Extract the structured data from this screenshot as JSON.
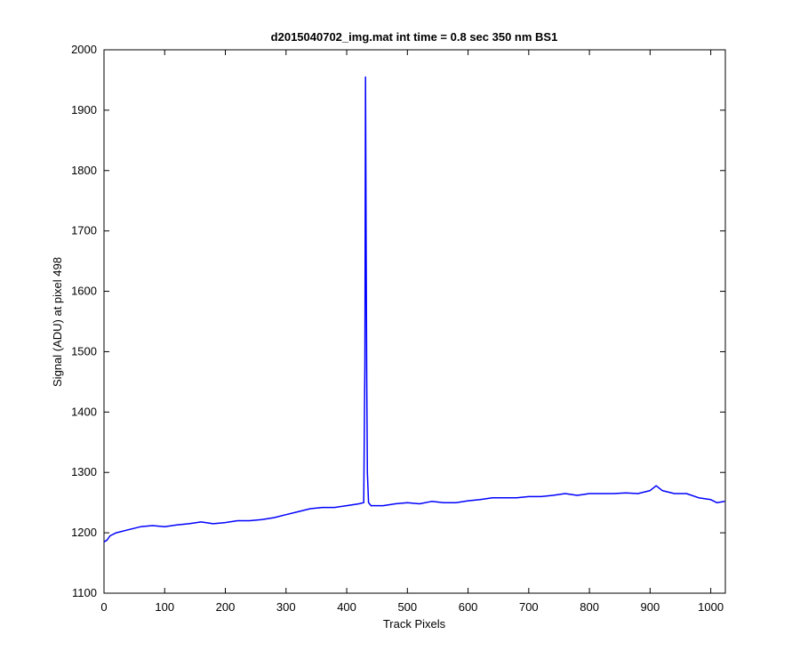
{
  "chart_data": {
    "type": "line",
    "title": "d2015040702_img.mat int time = 0.8 sec  350 nm BS1",
    "xlabel": "Track Pixels",
    "ylabel": "Signal (ADU) at pixel 498",
    "xlim": [
      0,
      1024
    ],
    "ylim": [
      1100,
      2000
    ],
    "xticks": [
      0,
      100,
      200,
      300,
      400,
      500,
      600,
      700,
      800,
      900,
      1000
    ],
    "yticks": [
      1100,
      1200,
      1300,
      1400,
      1500,
      1600,
      1700,
      1800,
      1900,
      2000
    ],
    "grid": false,
    "legend": "none",
    "line_color": "#0000ff",
    "series": [
      {
        "x": [
          0,
          5,
          10,
          20,
          40,
          60,
          80,
          100,
          120,
          140,
          160,
          180,
          200,
          220,
          240,
          260,
          280,
          300,
          320,
          340,
          360,
          380,
          400,
          420,
          428,
          430,
          431,
          432,
          433,
          434,
          436,
          440,
          460,
          480,
          500,
          520,
          540,
          560,
          580,
          600,
          620,
          640,
          660,
          680,
          700,
          720,
          740,
          760,
          780,
          800,
          820,
          840,
          860,
          880,
          900,
          910,
          920,
          940,
          960,
          980,
          1000,
          1010,
          1023
        ],
        "y": [
          1185,
          1188,
          1195,
          1200,
          1205,
          1210,
          1212,
          1210,
          1213,
          1215,
          1218,
          1215,
          1217,
          1220,
          1220,
          1222,
          1225,
          1230,
          1235,
          1240,
          1242,
          1242,
          1245,
          1248,
          1250,
          1480,
          1955,
          1680,
          1450,
          1300,
          1250,
          1245,
          1245,
          1248,
          1250,
          1248,
          1252,
          1250,
          1250,
          1253,
          1255,
          1258,
          1258,
          1258,
          1260,
          1260,
          1262,
          1265,
          1262,
          1265,
          1265,
          1265,
          1266,
          1265,
          1270,
          1278,
          1270,
          1265,
          1265,
          1258,
          1255,
          1250,
          1252
        ]
      }
    ]
  }
}
